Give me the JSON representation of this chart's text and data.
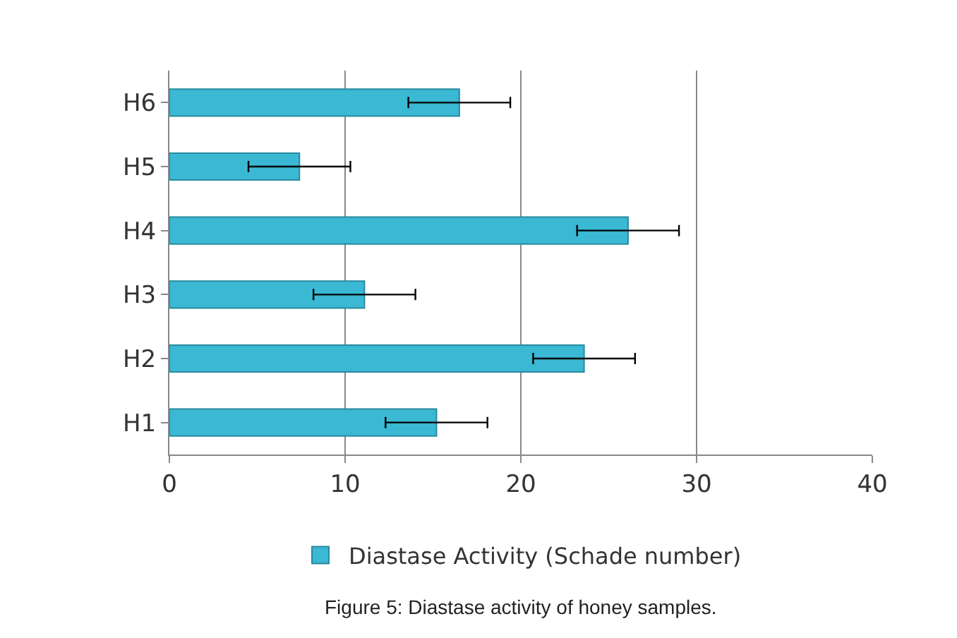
{
  "chart_data": {
    "type": "bar",
    "orientation": "horizontal",
    "categories": [
      "H6",
      "H5",
      "H4",
      "H3",
      "H2",
      "H1"
    ],
    "series": [
      {
        "name": "Diastase Activity (Schade number)",
        "color": "#3ab8d4",
        "values": [
          16.5,
          7.4,
          26.1,
          11.1,
          23.6,
          15.2
        ],
        "errors": [
          2.9,
          2.9,
          2.9,
          2.9,
          2.9,
          2.9
        ]
      }
    ],
    "xlim": [
      0,
      40
    ],
    "xticks": [
      0,
      10,
      20,
      30,
      40
    ],
    "grid": "x",
    "legend": "bottom",
    "annotations": [
      "Figure 5: Diastase activity of honey samples."
    ]
  }
}
